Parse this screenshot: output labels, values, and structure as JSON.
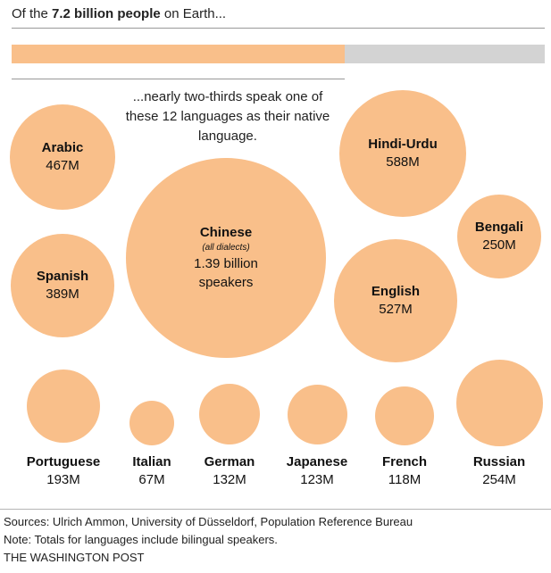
{
  "header": {
    "prefix": "Of the ",
    "highlight": "7.2 billion people",
    "suffix": " on Earth..."
  },
  "share_bar": {
    "total_billion": 7.2,
    "top12_fraction": 0.625,
    "fill_color": "#f9bf8a",
    "track_color": "#d3d3d3"
  },
  "intro_text": "...nearly two-thirds speak one of these 12 languages as their native language.",
  "languages": {
    "chinese": {
      "name": "Chinese",
      "note": "(all dialects)",
      "value": "1.39 billion",
      "unit": "speakers",
      "speakers_millions": 1390
    },
    "arabic": {
      "name": "Arabic",
      "value": "467M",
      "speakers_millions": 467
    },
    "spanish": {
      "name": "Spanish",
      "value": "389M",
      "speakers_millions": 389
    },
    "hindi_urdu": {
      "name": "Hindi-Urdu",
      "value": "588M",
      "speakers_millions": 588
    },
    "bengali": {
      "name": "Bengali",
      "value": "250M",
      "speakers_millions": 250
    },
    "english": {
      "name": "English",
      "value": "527M",
      "speakers_millions": 527
    },
    "portuguese": {
      "name": "Portuguese",
      "value": "193M",
      "speakers_millions": 193
    },
    "italian": {
      "name": "Italian",
      "value": "67M",
      "speakers_millions": 67
    },
    "german": {
      "name": "German",
      "value": "132M",
      "speakers_millions": 132
    },
    "japanese": {
      "name": "Japanese",
      "value": "123M",
      "speakers_millions": 123
    },
    "french": {
      "name": "French",
      "value": "118M",
      "speakers_millions": 118
    },
    "russian": {
      "name": "Russian",
      "value": "254M",
      "speakers_millions": 254
    }
  },
  "footer": {
    "sources": "Sources: Ulrich Ammon, University of Düsseldorf, Population Reference Bureau",
    "note": "Note: Totals for languages include bilingual speakers.",
    "credit": "THE WASHINGTON POST"
  },
  "colors": {
    "bubble": "#f9bf8a",
    "text": "#111111",
    "rule": "#999999"
  }
}
